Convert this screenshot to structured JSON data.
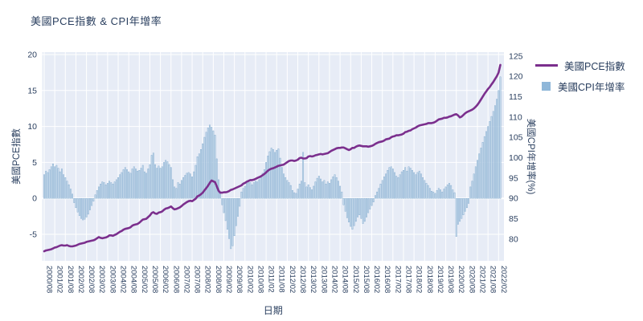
{
  "page": {
    "title": "美國PCE指數 & CPI年增率"
  },
  "legend": {
    "items": [
      {
        "label": "美國PCE指數",
        "swatch": "line",
        "color": "#7b2f8d"
      },
      {
        "label": "美國CPI年增率",
        "swatch": "square",
        "color": "#8fb7d9"
      }
    ]
  },
  "chart_data": {
    "type": "bar+line",
    "title": "美國PCE指數 & CPI年增率",
    "xlabel": "日期",
    "plot_bg": "#e7ecf6",
    "grid_color": "#ffffff",
    "text_color": "#2a3f5f",
    "legend_position": "top-right",
    "grid": true,
    "y_left": {
      "title": "美國PCE指數",
      "ticks": [
        20,
        15,
        10,
        5,
        0,
        -5
      ],
      "range": [
        -8.7,
        20.3
      ]
    },
    "y_right": {
      "title": "美國CPI年增率(%)",
      "ticks": [
        125,
        120,
        115,
        110,
        105,
        100,
        95,
        90,
        85,
        80
      ],
      "range": [
        74.6,
        126.0
      ]
    },
    "x_tick_labels": [
      "2000/08",
      "2001/02",
      "2001/08",
      "2002/02",
      "2002/08",
      "2003/02",
      "2003/08",
      "2004/02",
      "2004/08",
      "2005/02",
      "2005/08",
      "2006/02",
      "2006/08",
      "2007/02",
      "2007/08",
      "2008/02",
      "2008/08",
      "2009/02",
      "2009/08",
      "2010/02",
      "2010/08",
      "2011/02",
      "2011/08",
      "2012/02",
      "2012/08",
      "2013/02",
      "2013/08",
      "2014/02",
      "2014/08",
      "2015/02",
      "2015/08",
      "2016/02",
      "2016/08",
      "2017/02",
      "2017/08",
      "2018/02",
      "2018/08",
      "2019/02",
      "2019/08",
      "2020/02",
      "2020/08",
      "2021/02",
      "2021/08",
      "2022/02"
    ],
    "series": [
      {
        "name": "美國CPI年增率",
        "type": "bar",
        "axis": "left",
        "fill": "#cadded",
        "edge": "#7fa8cd",
        "start": "2000/08",
        "freq": "monthly",
        "values": [
          3.3,
          3.8,
          3.6,
          4.0,
          4.4,
          4.8,
          4.4,
          4.6,
          4.2,
          3.7,
          4.1,
          3.3,
          2.9,
          2.4,
          1.9,
          1.3,
          0.6,
          -0.6,
          -1.3,
          -1.9,
          -2.4,
          -2.8,
          -3.0,
          -2.9,
          -2.6,
          -2.2,
          -1.6,
          -1.0,
          -0.4,
          0.5,
          1.1,
          1.6,
          2.0,
          2.3,
          2.2,
          1.9,
          2.1,
          2.4,
          2.2,
          2.0,
          2.3,
          2.6,
          2.9,
          3.3,
          3.6,
          4.0,
          4.3,
          4.0,
          3.7,
          3.5,
          4.1,
          4.4,
          4.1,
          3.8,
          3.9,
          4.2,
          4.6,
          3.7,
          3.5,
          4.1,
          4.7,
          6.0,
          6.3,
          4.7,
          4.2,
          4.5,
          4.2,
          4.4,
          5.0,
          5.3,
          5.1,
          4.7,
          4.3,
          2.6,
          1.6,
          1.4,
          2.2,
          2.0,
          2.5,
          2.9,
          3.2,
          3.5,
          3.6,
          3.4,
          3.0,
          3.7,
          4.6,
          5.8,
          6.2,
          6.8,
          7.6,
          8.5,
          9.2,
          9.8,
          10.2,
          9.9,
          9.4,
          8.8,
          5.5,
          2.6,
          0.8,
          -0.9,
          -2.0,
          -3.1,
          -4.3,
          -5.6,
          -7.0,
          -6.6,
          -5.2,
          -3.8,
          -2.5,
          -1.1,
          0.9,
          1.4,
          1.7,
          2.1,
          2.4,
          2.2,
          1.9,
          2.2,
          2.4,
          2.3,
          2.6,
          2.9,
          3.5,
          4.0,
          5.0,
          5.9,
          6.5,
          7.0,
          6.8,
          6.4,
          6.7,
          6.9,
          5.6,
          4.3,
          3.4,
          2.9,
          2.5,
          2.2,
          1.8,
          1.1,
          0.8,
          0.7,
          1.3,
          2.0,
          2.4,
          6.4,
          2.2,
          1.6,
          1.9,
          1.5,
          1.2,
          1.7,
          2.3,
          2.8,
          3.1,
          2.7,
          2.3,
          2.5,
          2.0,
          2.3,
          2.1,
          2.6,
          3.0,
          3.3,
          2.9,
          2.4,
          1.7,
          0.9,
          -0.9,
          -1.8,
          -2.7,
          -3.3,
          -3.9,
          -4.3,
          -3.8,
          -3.2,
          -2.6,
          -2.3,
          -2.8,
          -3.5,
          -3.2,
          -2.6,
          -2.0,
          -1.5,
          -1.0,
          -0.5,
          0.4,
          0.9,
          1.4,
          2.0,
          2.5,
          3.0,
          3.4,
          3.9,
          4.3,
          4.4,
          4.1,
          3.6,
          3.1,
          2.9,
          3.3,
          3.7,
          3.9,
          4.3,
          3.8,
          4.4,
          4.2,
          3.9,
          3.6,
          3.3,
          3.6,
          3.8,
          3.4,
          2.9,
          2.5,
          2.1,
          1.8,
          1.4,
          1.0,
          0.9,
          0.7,
          1.1,
          1.4,
          1.2,
          0.9,
          1.3,
          1.6,
          1.9,
          2.1,
          1.8,
          1.2,
          0.8,
          -5.3,
          -3.6,
          -3.2,
          -2.8,
          -2.3,
          -1.8,
          -1.3,
          -0.7,
          1.6,
          2.4,
          3.4,
          4.4,
          5.3,
          6.2,
          7.0,
          7.8,
          8.6,
          9.3,
          10.0,
          10.7,
          11.4,
          12.1,
          12.9,
          13.8,
          15.0,
          16.9
        ]
      },
      {
        "name": "美國PCE指數",
        "type": "line",
        "axis": "right",
        "color": "#7b2f8d",
        "start": "2000/08",
        "freq": "monthly",
        "values": [
          77.0,
          77.2,
          77.3,
          77.4,
          77.5,
          77.7,
          77.9,
          78.0,
          78.2,
          78.4,
          78.5,
          78.4,
          78.4,
          78.5,
          78.3,
          78.2,
          78.2,
          78.3,
          78.4,
          78.6,
          78.8,
          78.9,
          79.0,
          79.1,
          79.3,
          79.4,
          79.5,
          79.6,
          79.7,
          79.9,
          80.2,
          80.5,
          80.3,
          80.2,
          80.3,
          80.4,
          80.6,
          80.9,
          80.9,
          80.8,
          81.0,
          81.2,
          81.5,
          81.8,
          82.0,
          82.3,
          82.5,
          82.6,
          82.7,
          82.9,
          83.3,
          83.5,
          83.6,
          83.7,
          84.0,
          84.4,
          84.8,
          84.9,
          85.0,
          85.4,
          85.8,
          86.4,
          86.6,
          86.3,
          86.2,
          86.5,
          86.6,
          86.8,
          87.2,
          87.5,
          87.6,
          87.8,
          88.0,
          87.6,
          87.3,
          87.4,
          87.6,
          87.8,
          88.1,
          88.5,
          88.8,
          89.1,
          89.3,
          89.4,
          89.3,
          89.6,
          89.9,
          90.5,
          90.7,
          91.0,
          91.4,
          92.0,
          92.5,
          93.1,
          93.8,
          94.4,
          94.2,
          94.0,
          93.0,
          91.9,
          91.4,
          91.4,
          91.5,
          91.5,
          91.6,
          91.8,
          92.1,
          92.2,
          92.4,
          92.6,
          92.8,
          93.0,
          93.2,
          93.6,
          93.8,
          94.1,
          94.3,
          94.5,
          94.5,
          94.6,
          94.8,
          95.0,
          95.2,
          95.4,
          95.7,
          96.0,
          96.4,
          96.8,
          97.1,
          97.3,
          97.4,
          97.6,
          97.8,
          98.0,
          98.1,
          98.2,
          98.3,
          98.6,
          98.9,
          99.2,
          99.3,
          99.3,
          99.2,
          99.3,
          99.5,
          99.9,
          100.0,
          99.8,
          99.8,
          99.9,
          100.3,
          100.4,
          100.3,
          100.4,
          100.6,
          100.7,
          100.8,
          100.9,
          100.8,
          100.9,
          101.0,
          101.1,
          101.4,
          101.7,
          101.9,
          102.1,
          102.3,
          102.4,
          102.4,
          102.5,
          102.5,
          102.3,
          102.1,
          101.9,
          102.1,
          102.4,
          102.4,
          102.7,
          102.9,
          103.0,
          102.9,
          102.8,
          102.8,
          102.8,
          102.7,
          102.8,
          102.9,
          103.1,
          103.4,
          103.6,
          103.8,
          103.9,
          104.0,
          104.2,
          104.5,
          104.6,
          104.7,
          105.0,
          105.2,
          105.3,
          105.5,
          105.5,
          105.6,
          105.7,
          105.9,
          106.3,
          106.4,
          106.6,
          106.7,
          107.0,
          107.2,
          107.4,
          107.7,
          107.9,
          108.0,
          108.1,
          108.2,
          108.3,
          108.5,
          108.5,
          108.5,
          108.6,
          108.8,
          109.1,
          109.4,
          109.5,
          109.6,
          109.8,
          109.8,
          109.9,
          110.1,
          110.2,
          110.4,
          110.6,
          110.7,
          110.4,
          109.9,
          110.1,
          110.5,
          110.9,
          111.2,
          111.4,
          111.6,
          111.8,
          112.1,
          112.5,
          113.0,
          113.6,
          114.3,
          115.0,
          115.7,
          116.3,
          116.9,
          117.4,
          118.0,
          118.6,
          119.3,
          120.0,
          120.9,
          122.8
        ]
      }
    ]
  }
}
